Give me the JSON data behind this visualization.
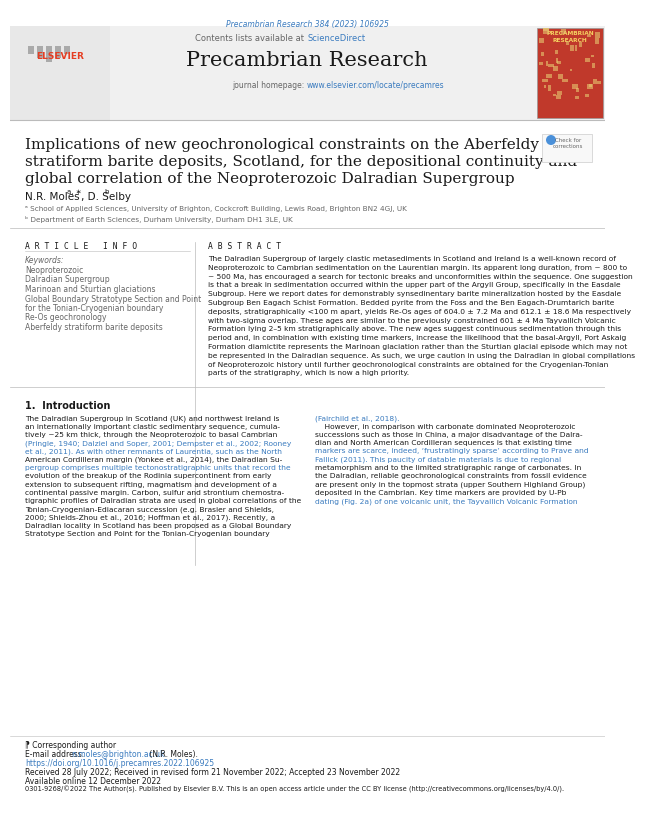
{
  "journal_ref": "Precambrian Research 384 (2023) 106925",
  "journal_name": "Precambrian Research",
  "contents_text": "Contents lists available at ",
  "contents_link": "ScienceDirect",
  "journal_homepage_text": "journal homepage: ",
  "journal_homepage_link": "www.elsevier.com/locate/precamres",
  "title_line1": "Implications of new geochronological constraints on the Aberfeldy",
  "title_line2": "stratiform barite deposits, Scotland, for the depositional continuity and",
  "title_line3": "global correlation of the Neoproterozoic Dalradian Supergroup",
  "author_line": "N.R. Moles",
  "author_sup1": "a, ∗",
  "author2": ", D. Selby",
  "author_sup2": "b",
  "affil1": "ᵃ School of Applied Sciences, University of Brighton, Cockcroft Building, Lewis Road, Brighton BN2 4GJ, UK",
  "affil2": "ᵇ Department of Earth Sciences, Durham University, Durham DH1 3LE, UK",
  "article_info_title": "A R T I C L E   I N F O",
  "keywords_label": "Keywords:",
  "keywords": [
    "Neoproterozoic",
    "Dalradian Supergroup",
    "Marinoan and Sturtian glaciations",
    "Global Boundary Stratotype Section and Point",
    "for the Tonian-Cryogenian boundary",
    "Re-Os geochronology",
    "Aberfeldy stratiform barite deposits"
  ],
  "abstract_title": "A B S T R A C T",
  "abstract_lines": [
    "The Dalradian Supergroup of largely clastic metasediments in Scotland and Ireland is a well-known record of",
    "Neoproterozoic to Cambrian sedimentation on the Laurentian margin. Its apparent long duration, from ~ 800 to",
    "~ 500 Ma, has encouraged a search for tectonic breaks and unconformities within the sequence. One suggestion",
    "is that a break in sedimentation occurred within the upper part of the Argyll Group, specifically in the Easdale",
    "Subgroup. Here we report dates for demonstrably synsedinentary barite mineralization hosted by the Easdale",
    "Subgroup Ben Eagach Schist Formation. Bedded pyrite from the Foss and the Ben Eagach-Drumtarich barite",
    "deposits, stratigraphically <100 m apart, yields Re-Os ages of 604.0 ± 7.2 Ma and 612.1 ± 18.6 Ma respectively",
    "with two-sigma overlap. These ages are similar to the previously constrained 601 ± 4 Ma Tayvallich Volcanic",
    "Formation lying 2–5 km stratigraphically above. The new ages suggest continuous sedimentation through this",
    "period and, in combination with existing time markers, increase the likelihood that the basal-Argyll, Port Askaig",
    "Formation diamictite represents the Marinoan glaciation rather than the Sturtian glacial episode which may not",
    "be represented in the Dalradian sequence. As such, we urge caution in using the Dalradian in global compilations",
    "of Neoproterozoic history until further geochronological constraints are obtained for the Cryogenian-Tonian",
    "parts of the stratigraphy, which is now a high priority."
  ],
  "intro_title": "1.  Introduction",
  "intro_col1_lines": [
    "The Dalradian Supergroup in Scotland (UK) and northwest Ireland is",
    "an internationally important clastic sedimentary sequence, cumula-",
    "tively ~25 km thick, through the Neoproterozoic to basal Cambrian",
    "(Pringle, 1940; Dalziel and Soper, 2001; Dempster et al., 2002; Rooney",
    "et al., 2011). As with other remnants of Laurentia, such as the North",
    "American Cordilleran margin (Yonkee et al., 2014), the Dalradian Su-",
    "pergroup comprises multiple tectonostratigraphic units that record the",
    "evolution of the breakup of the Rodinia supercontinent from early",
    "extension to subsequent rifting, magmatism and development of a",
    "continental passive margin. Carbon, sulfur and strontium chemostra-",
    "tigraphic profiles of Dalradian strata are used in global correlations of the",
    "Tonian-Cryogenian-Ediacaran succession (e.g. Brasier and Shields,",
    "2000; Shields-Zhou et al., 2016; Hoffman et al., 2017). Recently, a",
    "Dalradian locality in Scotland has been proposed as a Global Boundary",
    "Stratotype Section and Point for the Tonian-Cryogenian boundary"
  ],
  "intro_col1_link_lines": [
    3,
    4,
    6
  ],
  "intro_col2_lines": [
    "(Fairchild et al., 2018).",
    "    However, in comparison with carbonate dominated Neoproterozoic",
    "successions such as those in China, a major disadvantage of the Dalra-",
    "dian and North American Cordilleran sequences is that existing time",
    "markers are scarce, indeed, ‘frustratingly sparse’ according to Prave and",
    "Fallick (2011). This paucity of datable materials is due to regional",
    "metamorphism and to the limited stratigraphic range of carbonates. In",
    "the Dalradian, reliable geochronological constraints from fossil evidence",
    "are present only in the topmost strata (upper Southern Highland Group)",
    "deposited in the Cambrian. Key time markers are provided by U-Pb",
    "dating (Fig. 2a) of one volcanic unit, the Tayvallich Volcanic Formation"
  ],
  "intro_col2_link_lines": [
    0,
    4,
    5,
    10
  ],
  "footnote_star": "⁋ Corresponding author",
  "footnote_email_label": "E-mail address: ",
  "footnote_email": "n.moles@brighton.ac.uk",
  "footnote_email_suffix": " (N.R. Moles).",
  "doi_prefix": "https://doi.org/10.1016/j.precamres.2022.106925",
  "received_text": "Received 28 July 2022; Received in revised form 21 November 2022; Accepted 23 November 2022",
  "available_text": "Available online 12 December 2022",
  "license_text": "0301-9268/©2022 The Author(s). Published by Elsevier B.V. This is an open access article under the CC BY license (http://creativecommons.org/licenses/by/4.0/).",
  "bg_color": "#ffffff",
  "header_bg": "#f0f0f0",
  "link_color": "#3a7bbf",
  "text_color": "#1a1a1a",
  "gray_color": "#666666",
  "light_gray": "#999999",
  "divider_color": "#bbbbbb",
  "red_cover": "#c0392b",
  "elsevier_red": "#e53e23",
  "journal_ref_color": "#3a7bbf"
}
